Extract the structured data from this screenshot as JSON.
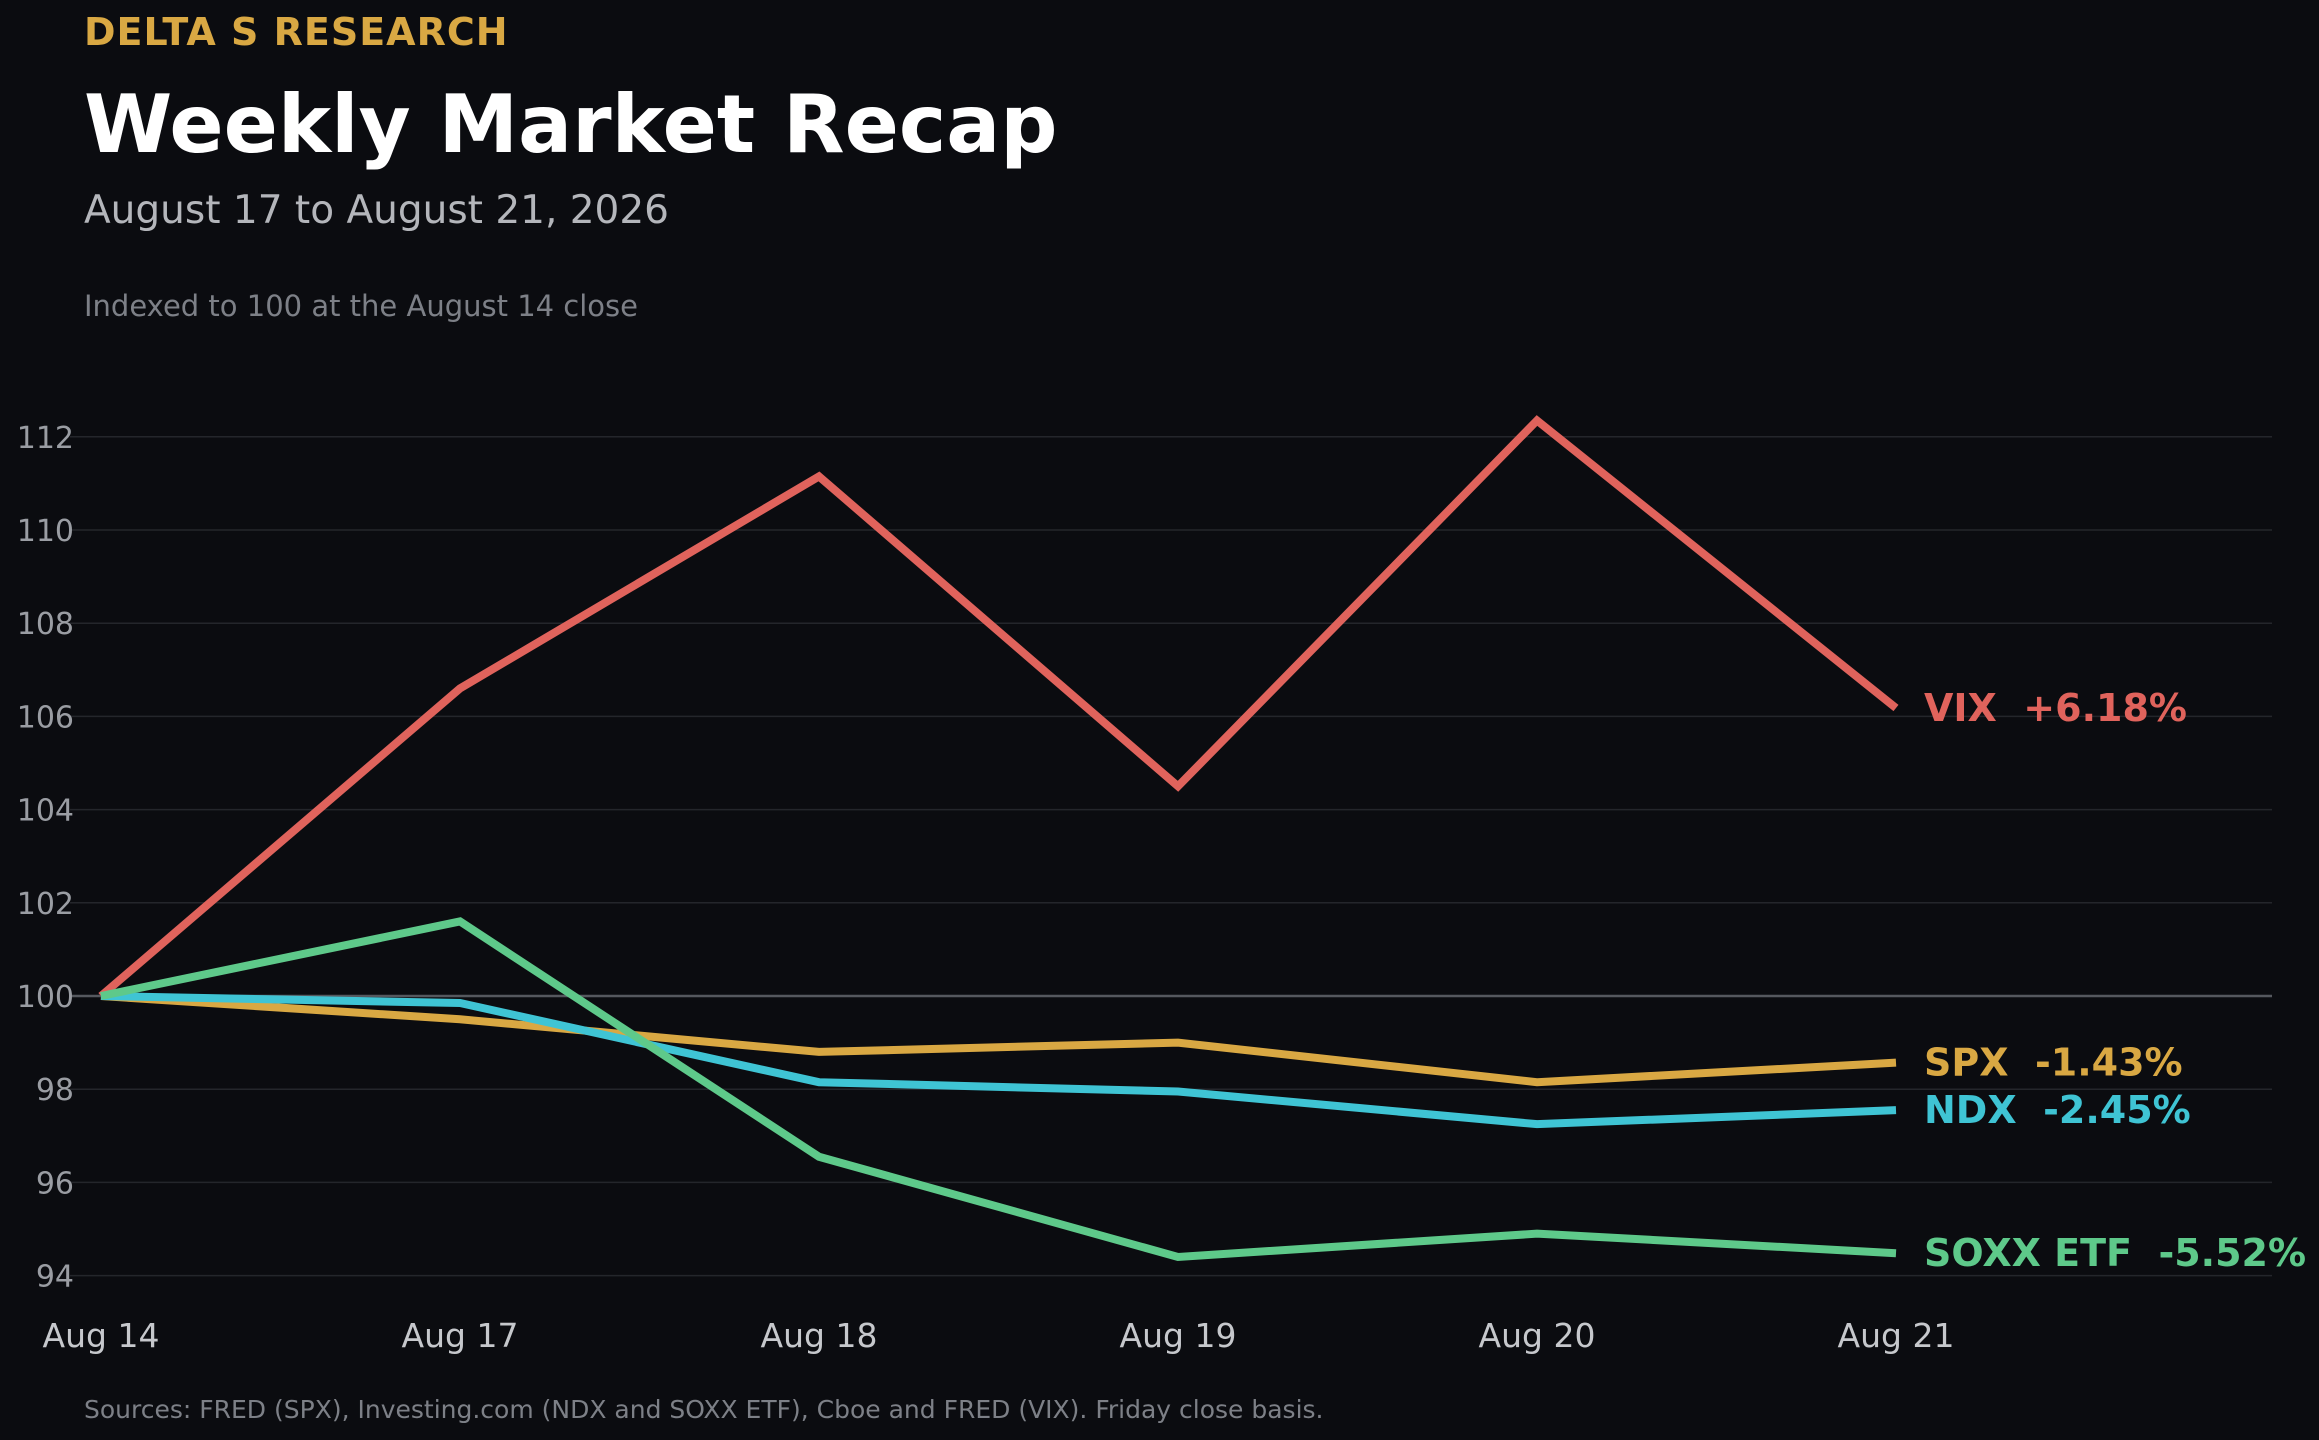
{
  "header": {
    "brand": "DELTA S RESEARCH",
    "title": "Weekly Market Recap",
    "subtitle": "August 17 to August 21, 2026",
    "note": "Indexed to 100 at the August 14 close"
  },
  "footer": {
    "source": "Sources: FRED (SPX), Investing.com (NDX and SOXX ETF), Cboe and FRED (VIX). Friday close basis."
  },
  "colors": {
    "background": "#0b0c10",
    "grid": "#24262b",
    "baseline": "#55585e"
  },
  "chart_data": {
    "type": "line",
    "categories": [
      "Aug 14",
      "Aug 17",
      "Aug 18",
      "Aug 19",
      "Aug 20",
      "Aug 21"
    ],
    "ylim": [
      93.5,
      113.5
    ],
    "yticks": [
      94,
      96,
      98,
      100,
      102,
      104,
      106,
      108,
      110,
      112
    ],
    "grid": true,
    "baseline": 100,
    "series": [
      {
        "name": "VIX",
        "change": "+6.18%",
        "color": "#e0635c",
        "values": [
          100,
          106.6,
          111.15,
          104.5,
          112.35,
          106.18
        ]
      },
      {
        "name": "SPX",
        "change": "-1.43%",
        "color": "#d9a843",
        "values": [
          100,
          99.5,
          98.8,
          99.0,
          98.15,
          98.57
        ]
      },
      {
        "name": "NDX",
        "change": "-2.45%",
        "color": "#3fc4d4",
        "values": [
          100,
          99.85,
          98.15,
          97.95,
          97.25,
          97.55
        ]
      },
      {
        "name": "SOXX ETF",
        "change": "-5.52%",
        "color": "#5ec98a",
        "values": [
          100,
          101.6,
          96.55,
          94.4,
          94.9,
          94.48
        ]
      }
    ]
  }
}
